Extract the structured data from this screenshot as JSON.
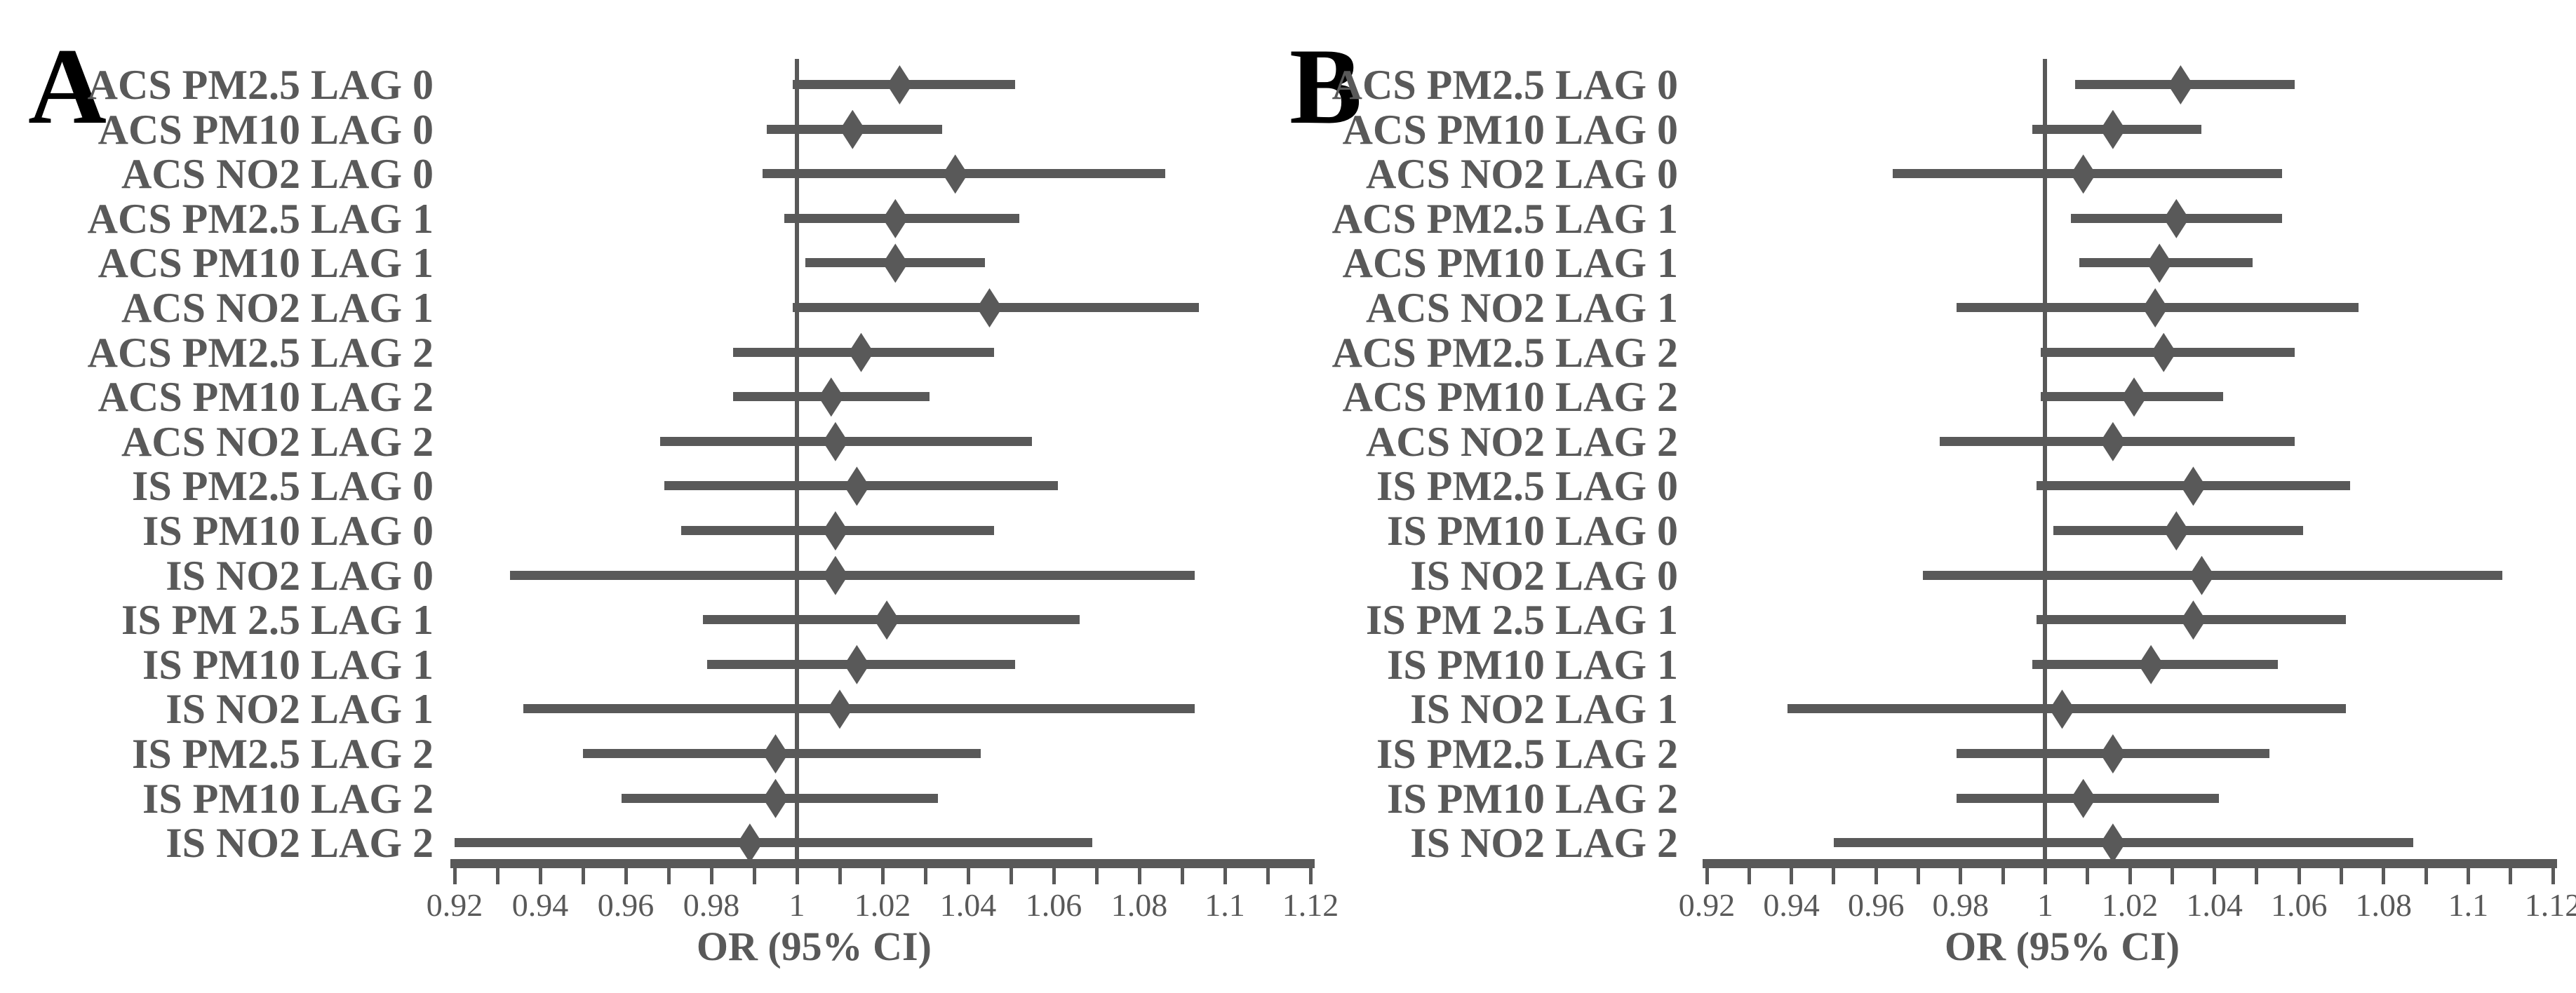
{
  "style": {
    "background": "#ffffff",
    "ink_color": "#595959",
    "panel_letter_color": "#000000"
  },
  "chart_data": [
    {
      "type": "scatter",
      "subtype": "forest-plot",
      "panel_letter": "A",
      "xlabel": "OR (95% CI)",
      "xlim": [
        0.92,
        1.12
      ],
      "xticks_major": [
        0.92,
        0.94,
        0.96,
        0.98,
        1,
        1.02,
        1.04,
        1.06,
        1.08,
        1.1,
        1.12
      ],
      "xtick_labels": [
        "0.92",
        "0.94",
        "0.96",
        "0.98",
        "1",
        "1.02",
        "1.04",
        "1.06",
        "1.08",
        "1.1",
        "1.12"
      ],
      "minor_tick_step": 0.01,
      "reference_line_x": 1,
      "grid": false,
      "legend": "none",
      "categories": [
        "ACS PM2.5 LAG 0",
        "ACS PM10 LAG 0",
        "ACS NO2 LAG 0",
        "ACS PM2.5 LAG 1",
        "ACS PM10 LAG 1",
        "ACS NO2 LAG 1",
        "ACS PM2.5 LAG 2",
        "ACS PM10 LAG 2",
        "ACS NO2 LAG 2",
        "IS PM2.5 LAG 0",
        "IS PM10 LAG 0",
        "IS NO2 LAG 0",
        "IS PM 2.5 LAG 1",
        "IS PM10 LAG 1",
        "IS NO2 LAG 1",
        "IS PM2.5 LAG 2",
        "IS PM10 LAG 2",
        "IS NO2 LAG 2"
      ],
      "series": [
        {
          "name": "OR with 95% CI",
          "points": [
            {
              "or": 1.024,
              "lo": 0.999,
              "hi": 1.051
            },
            {
              "or": 1.013,
              "lo": 0.993,
              "hi": 1.034
            },
            {
              "or": 1.037,
              "lo": 0.992,
              "hi": 1.086
            },
            {
              "or": 1.023,
              "lo": 0.997,
              "hi": 1.052
            },
            {
              "or": 1.023,
              "lo": 1.002,
              "hi": 1.044
            },
            {
              "or": 1.045,
              "lo": 0.999,
              "hi": 1.094
            },
            {
              "or": 1.015,
              "lo": 0.985,
              "hi": 1.046
            },
            {
              "or": 1.008,
              "lo": 0.985,
              "hi": 1.031
            },
            {
              "or": 1.009,
              "lo": 0.968,
              "hi": 1.055
            },
            {
              "or": 1.014,
              "lo": 0.969,
              "hi": 1.061
            },
            {
              "or": 1.009,
              "lo": 0.973,
              "hi": 1.046
            },
            {
              "or": 1.009,
              "lo": 0.933,
              "hi": 1.093
            },
            {
              "or": 1.021,
              "lo": 0.978,
              "hi": 1.066
            },
            {
              "or": 1.014,
              "lo": 0.979,
              "hi": 1.051
            },
            {
              "or": 1.01,
              "lo": 0.936,
              "hi": 1.093
            },
            {
              "or": 0.995,
              "lo": 0.95,
              "hi": 1.043
            },
            {
              "or": 0.995,
              "lo": 0.959,
              "hi": 1.033
            },
            {
              "or": 0.989,
              "lo": 0.92,
              "hi": 1.069
            }
          ]
        }
      ]
    },
    {
      "type": "scatter",
      "subtype": "forest-plot",
      "panel_letter": "B",
      "xlabel": "OR (95% CI)",
      "xlim": [
        0.92,
        1.12
      ],
      "xticks_major": [
        0.92,
        0.94,
        0.96,
        0.98,
        1,
        1.02,
        1.04,
        1.06,
        1.08,
        1.1,
        1.12
      ],
      "xtick_labels": [
        "0.92",
        "0.94",
        "0.96",
        "0.98",
        "1",
        "1.02",
        "1.04",
        "1.06",
        "1.08",
        "1.1",
        "1.12"
      ],
      "minor_tick_step": 0.01,
      "reference_line_x": 1,
      "grid": false,
      "legend": "none",
      "categories": [
        "ACS PM2.5 LAG 0",
        "ACS PM10 LAG 0",
        "ACS NO2 LAG 0",
        "ACS PM2.5 LAG 1",
        "ACS PM10 LAG 1",
        "ACS NO2 LAG 1",
        "ACS PM2.5 LAG 2",
        "ACS PM10 LAG 2",
        "ACS NO2 LAG 2",
        "IS PM2.5 LAG 0",
        "IS PM10 LAG 0",
        "IS NO2 LAG 0",
        "IS PM 2.5 LAG 1",
        "IS PM10 LAG 1",
        "IS NO2 LAG 1",
        "IS PM2.5 LAG 2",
        "IS PM10 LAG 2",
        "IS NO2 LAG 2"
      ],
      "series": [
        {
          "name": "OR with 95% CI",
          "points": [
            {
              "or": 1.032,
              "lo": 1.007,
              "hi": 1.059
            },
            {
              "or": 1.016,
              "lo": 0.997,
              "hi": 1.037
            },
            {
              "or": 1.009,
              "lo": 0.964,
              "hi": 1.056
            },
            {
              "or": 1.031,
              "lo": 1.006,
              "hi": 1.056
            },
            {
              "or": 1.027,
              "lo": 1.008,
              "hi": 1.049
            },
            {
              "or": 1.026,
              "lo": 0.979,
              "hi": 1.074
            },
            {
              "or": 1.028,
              "lo": 0.999,
              "hi": 1.059
            },
            {
              "or": 1.021,
              "lo": 0.999,
              "hi": 1.042
            },
            {
              "or": 1.016,
              "lo": 0.975,
              "hi": 1.059
            },
            {
              "or": 1.035,
              "lo": 0.998,
              "hi": 1.072
            },
            {
              "or": 1.031,
              "lo": 1.002,
              "hi": 1.061
            },
            {
              "or": 1.037,
              "lo": 0.971,
              "hi": 1.108
            },
            {
              "or": 1.035,
              "lo": 0.998,
              "hi": 1.071
            },
            {
              "or": 1.025,
              "lo": 0.997,
              "hi": 1.055
            },
            {
              "or": 1.004,
              "lo": 0.939,
              "hi": 1.071
            },
            {
              "or": 1.016,
              "lo": 0.979,
              "hi": 1.053
            },
            {
              "or": 1.009,
              "lo": 0.979,
              "hi": 1.041
            },
            {
              "or": 1.016,
              "lo": 0.95,
              "hi": 1.087
            }
          ]
        }
      ]
    }
  ]
}
